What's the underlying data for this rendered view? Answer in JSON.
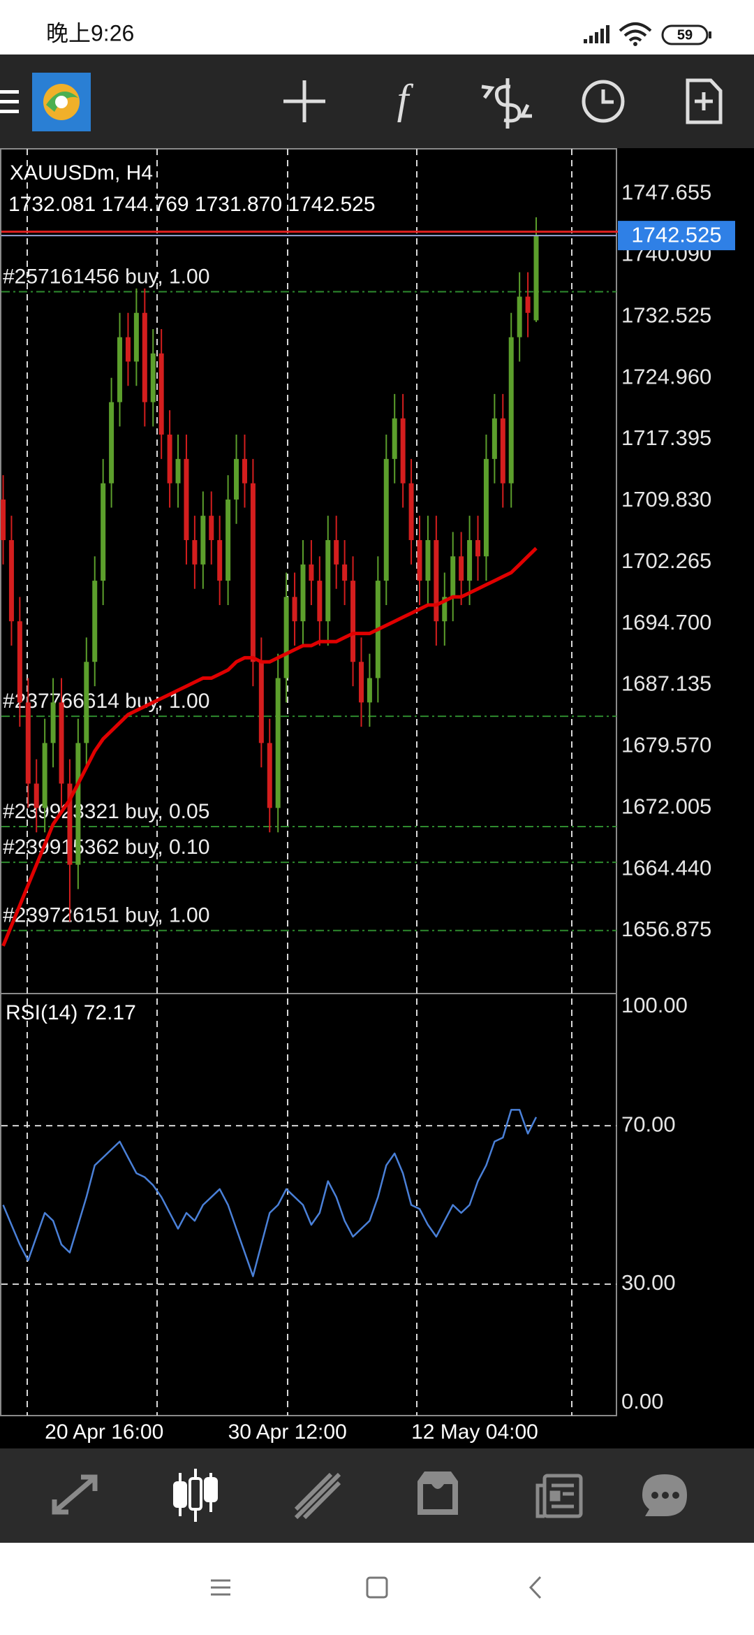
{
  "status_bar": {
    "time": "晚上9:26",
    "battery": "59"
  },
  "chart_data": [
    {
      "type": "candlestick",
      "title": "XAUUSDm, H4",
      "subtitle": "1732.081 1744.769 1731.870 1742.525",
      "categories": [
        null,
        null,
        null,
        null,
        null,
        "20 Apr 16:00",
        null,
        null,
        null,
        null,
        null,
        null,
        null,
        null,
        null,
        null,
        null,
        null,
        null,
        null,
        null,
        null,
        null,
        null,
        null,
        null,
        null,
        "30 Apr 12:00",
        null,
        null,
        null,
        null,
        null,
        null,
        null,
        null,
        null,
        null,
        null,
        null,
        null,
        null,
        null,
        null,
        null,
        null,
        null,
        null,
        null,
        "12 May 04:00",
        null,
        null,
        null,
        null,
        null,
        null,
        null,
        null,
        null,
        null,
        null,
        null,
        null,
        null,
        null
      ],
      "open": [
        1710,
        1705,
        1695,
        1685,
        1675,
        1672,
        1680,
        1685,
        1675,
        1665,
        1680,
        1690,
        1700,
        1712,
        1722,
        1730,
        1727,
        1733,
        1722,
        1728,
        1718,
        1712,
        1715,
        1705,
        1702,
        1708,
        1705,
        1700,
        1710,
        1715,
        1712,
        1690,
        1680,
        1672,
        1688,
        1698,
        1695,
        1702,
        1700,
        1695,
        1705,
        1702,
        1700,
        1690,
        1685,
        1688,
        1700,
        1715,
        1720,
        1712,
        1705,
        1700,
        1705,
        1695,
        1698,
        1703,
        1700,
        1705,
        1703,
        1715,
        1720,
        1712,
        1730,
        1735,
        1732.081
      ],
      "high": [
        1713,
        1708,
        1698,
        1688,
        1678,
        1683,
        1688,
        1688,
        1678,
        1683,
        1693,
        1703,
        1715,
        1725,
        1733,
        1733,
        1736,
        1736,
        1731,
        1731,
        1721,
        1718,
        1718,
        1708,
        1711,
        1711,
        1708,
        1713,
        1718,
        1718,
        1715,
        1693,
        1683,
        1691,
        1701,
        1701,
        1705,
        1705,
        1703,
        1708,
        1708,
        1705,
        1703,
        1693,
        1691,
        1703,
        1718,
        1723,
        1723,
        1715,
        1708,
        1708,
        1708,
        1701,
        1706,
        1706,
        1708,
        1708,
        1718,
        1723,
        1723,
        1733,
        1738,
        1738,
        1744.769
      ],
      "low": [
        1702,
        1692,
        1682,
        1672,
        1669,
        1669,
        1677,
        1672,
        1658,
        1662,
        1677,
        1687,
        1697,
        1709,
        1719,
        1724,
        1724,
        1719,
        1719,
        1715,
        1709,
        1709,
        1702,
        1699,
        1699,
        1702,
        1697,
        1697,
        1707,
        1709,
        1687,
        1677,
        1669,
        1669,
        1685,
        1692,
        1692,
        1697,
        1692,
        1692,
        1699,
        1697,
        1687,
        1682,
        1682,
        1685,
        1697,
        1712,
        1709,
        1702,
        1697,
        1697,
        1692,
        1692,
        1695,
        1697,
        1697,
        1700,
        1700,
        1712,
        1709,
        1709,
        1727,
        1730,
        1731.87
      ],
      "close": [
        1705,
        1695,
        1685,
        1675,
        1672,
        1680,
        1685,
        1675,
        1665,
        1680,
        1690,
        1700,
        1712,
        1722,
        1730,
        1727,
        1733,
        1722,
        1728,
        1718,
        1712,
        1715,
        1705,
        1702,
        1708,
        1705,
        1700,
        1710,
        1715,
        1712,
        1690,
        1680,
        1672,
        1688,
        1698,
        1695,
        1702,
        1700,
        1695,
        1705,
        1702,
        1700,
        1690,
        1685,
        1688,
        1700,
        1715,
        1720,
        1712,
        1705,
        1700,
        1705,
        1695,
        1698,
        1703,
        1700,
        1705,
        1703,
        1715,
        1720,
        1712,
        1730,
        1735,
        1733,
        1742.525
      ],
      "up_color": "#5c9f2c",
      "down_color": "#d41e1e",
      "moving_average": {
        "color": "#e00000",
        "values": [
          1655,
          1657.5,
          1660,
          1662.5,
          1665,
          1667.5,
          1670,
          1671.5,
          1673,
          1675,
          1677,
          1679,
          1680.5,
          1681.5,
          1682.5,
          1683.5,
          1684,
          1684.5,
          1685,
          1685.5,
          1686,
          1686.5,
          1687,
          1687.5,
          1688,
          1688,
          1688.5,
          1689,
          1690,
          1690.5,
          1690.5,
          1690,
          1690,
          1690.5,
          1691,
          1691.5,
          1692,
          1692,
          1692.5,
          1692.5,
          1692.5,
          1693,
          1693.5,
          1693.5,
          1693.5,
          1694,
          1694.5,
          1695,
          1695.5,
          1696,
          1696.5,
          1697,
          1697,
          1697.5,
          1698,
          1698,
          1698.5,
          1699,
          1699.5,
          1700,
          1700.5,
          1701,
          1702,
          1703,
          1704
        ]
      },
      "ask_line": {
        "value": 1743.0,
        "color": "#e02020"
      },
      "bid_color": "#9aa6d6",
      "price_label_color": "#2f80e6",
      "orders": [
        {
          "label": "#257161456 buy, 1.00",
          "value": 1735.6
        },
        {
          "label": "#237766614 buy, 1.00",
          "value": 1683.3
        },
        {
          "label": "#239923321 buy, 0.05",
          "value": 1669.7
        },
        {
          "label": "#239915362 buy, 0.10",
          "value": 1665.3
        },
        {
          "label": "#239726151 buy, 1.00",
          "value": 1656.9
        }
      ],
      "order_color": "#2e8b2e",
      "ylim": [
        1649.13,
        1753.21
      ],
      "yticks": [
        1747.655,
        {
          "value": 1740.09,
          "label": "1740.090"
        },
        1732.525,
        {
          "value": 1724.96,
          "label": "1724.960"
        },
        1717.395,
        {
          "value": 1709.83,
          "label": "1709.830"
        },
        1702.265,
        {
          "value": 1694.7,
          "label": "1694.700"
        },
        1687.135,
        {
          "value": 1679.57,
          "label": "1679.570"
        },
        1672.005,
        {
          "value": 1664.44,
          "label": "1664.440"
        },
        1656.875
      ]
    },
    {
      "type": "line",
      "title": "RSI(14) 72.17",
      "series": [
        {
          "color": "#4a80d8",
          "values": [
            50,
            45,
            40,
            36,
            42,
            48,
            46,
            40,
            38,
            45,
            52,
            60,
            62,
            64,
            66,
            62,
            58,
            57,
            55,
            52,
            48,
            44,
            48,
            46,
            50,
            52,
            54,
            50,
            44,
            38,
            32,
            40,
            48,
            50,
            54,
            52,
            50,
            45,
            48,
            56,
            52,
            46,
            42,
            44,
            46,
            52,
            60,
            63,
            58,
            50,
            49,
            45,
            42,
            46,
            50,
            48,
            50,
            56,
            60,
            66,
            67,
            74,
            74,
            68,
            72.17
          ]
        }
      ],
      "ylim": [
        -3.17,
        103.35
      ],
      "yticks": [
        {
          "value": 100,
          "label": "100.00"
        },
        {
          "value": 70,
          "label": "70.00"
        },
        {
          "value": 30,
          "label": "30.00"
        },
        {
          "value": 0,
          "label": "0.00"
        }
      ]
    }
  ]
}
